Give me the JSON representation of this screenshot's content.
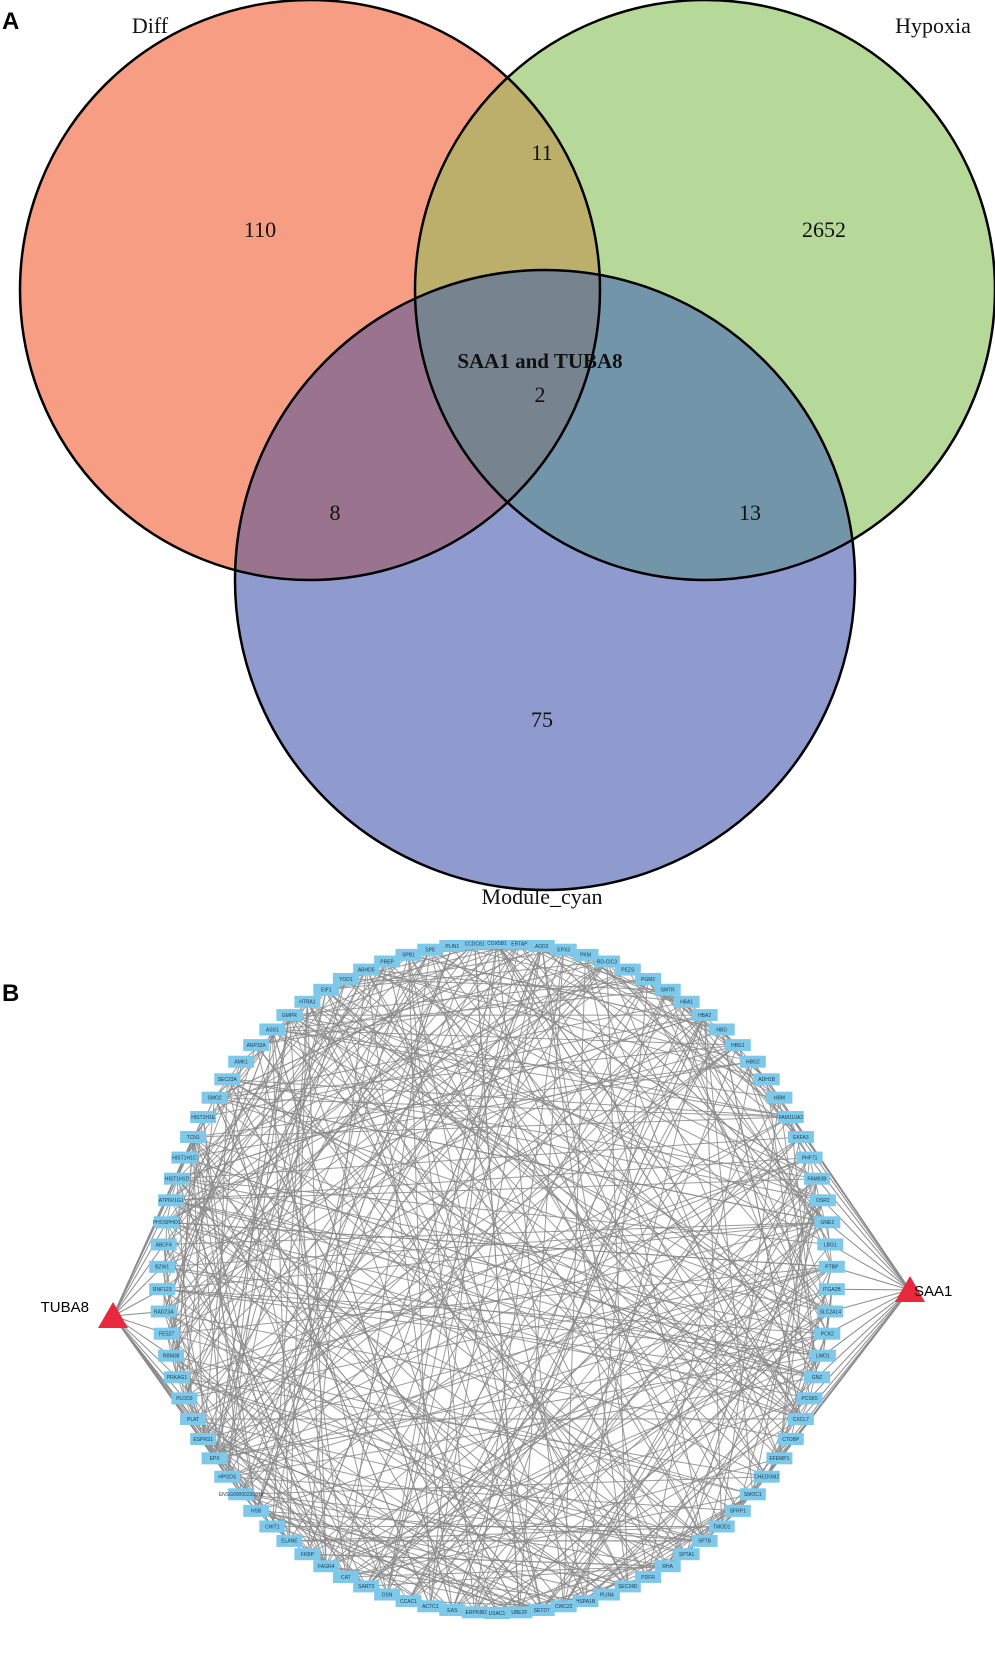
{
  "panel_a": {
    "label": "A",
    "sets": [
      {
        "name": "Diff",
        "color": "#f79d84"
      },
      {
        "name": "Hypoxia",
        "color": "#b6d999"
      },
      {
        "name": "Module_cyan",
        "color": "#8f9ace"
      }
    ],
    "regions": {
      "diff_only": "110",
      "hypoxia_only": "2652",
      "module_only": "75",
      "diff_hypoxia": "11",
      "diff_module": "8",
      "hypoxia_module": "13",
      "all_three": "2",
      "all_three_annotation": "SAA1 and TUBA8"
    },
    "overlap_colors": {
      "diff_hypoxia": "#bcaf6c",
      "diff_module": "#9a738f",
      "hypoxia_module": "#7395aa",
      "all_three": "#77838f"
    }
  },
  "panel_b": {
    "label": "B",
    "node_color": "#7ec8ea",
    "hub_color": "#e8283c",
    "edge_color": "#8a8a8a",
    "hubs": [
      "SAA1",
      "TUBA8"
    ],
    "nodes": [
      "COX5B1",
      "ERTAP",
      "ADD2",
      "EPX3",
      "PKM",
      "RD-CIC3",
      "PEZS",
      "PGM2",
      "SMTR",
      "HBA1",
      "HBA2",
      "HBD",
      "HBG1",
      "HBG2",
      "ADH1B",
      "HBM",
      "FAM110A2",
      "EKFA3",
      "PHF71",
      "FAM83B",
      "OSR2",
      "GNE2",
      "LBG1",
      "PTBP",
      "ITGA2B",
      "SLC2A14",
      "PCK2",
      "LMO1",
      "GNZ",
      "PCSK5",
      "CXCL7",
      "CTOBP",
      "EFEMP1",
      "CHEDGM2",
      "SMOC1",
      "SFRP1",
      "TMOD1",
      "SPTB",
      "SPTA1",
      "RHA",
      "PDFR",
      "SEC24D",
      "PLIN4",
      "HSPA1B",
      "CWC22",
      "SETD7",
      "UBE2F",
      "USAC1",
      "SERPINB2",
      "EAS",
      "ACTC1",
      "CCAC1",
      "DSN",
      "SART3",
      "CAT",
      "FAGR4",
      "FKBP",
      "ELANE",
      "CHIT1",
      "HSB",
      "ENSG00000230316",
      "HPGDS",
      "EPX",
      "ESPRS1",
      "PLAT",
      "PLOD3",
      "PRKAG1",
      "RBM38",
      "FES27",
      "RADZ3A",
      "RNF123",
      "BZW1",
      "ABCF4",
      "PHOSPHO1",
      "ATP6V1G1",
      "HIST1H1D",
      "HIST1H1C",
      "TCN1",
      "HIST1H1E",
      "SMO2",
      "SEC23A",
      "AMK1",
      "ANP32A",
      "ASS1",
      "GMPR",
      "HTRA1",
      "EIF1",
      "YOD1",
      "ABHD5",
      "PREP",
      "SPB1",
      "SPE",
      "PLIN1",
      "CCDC81"
    ]
  }
}
